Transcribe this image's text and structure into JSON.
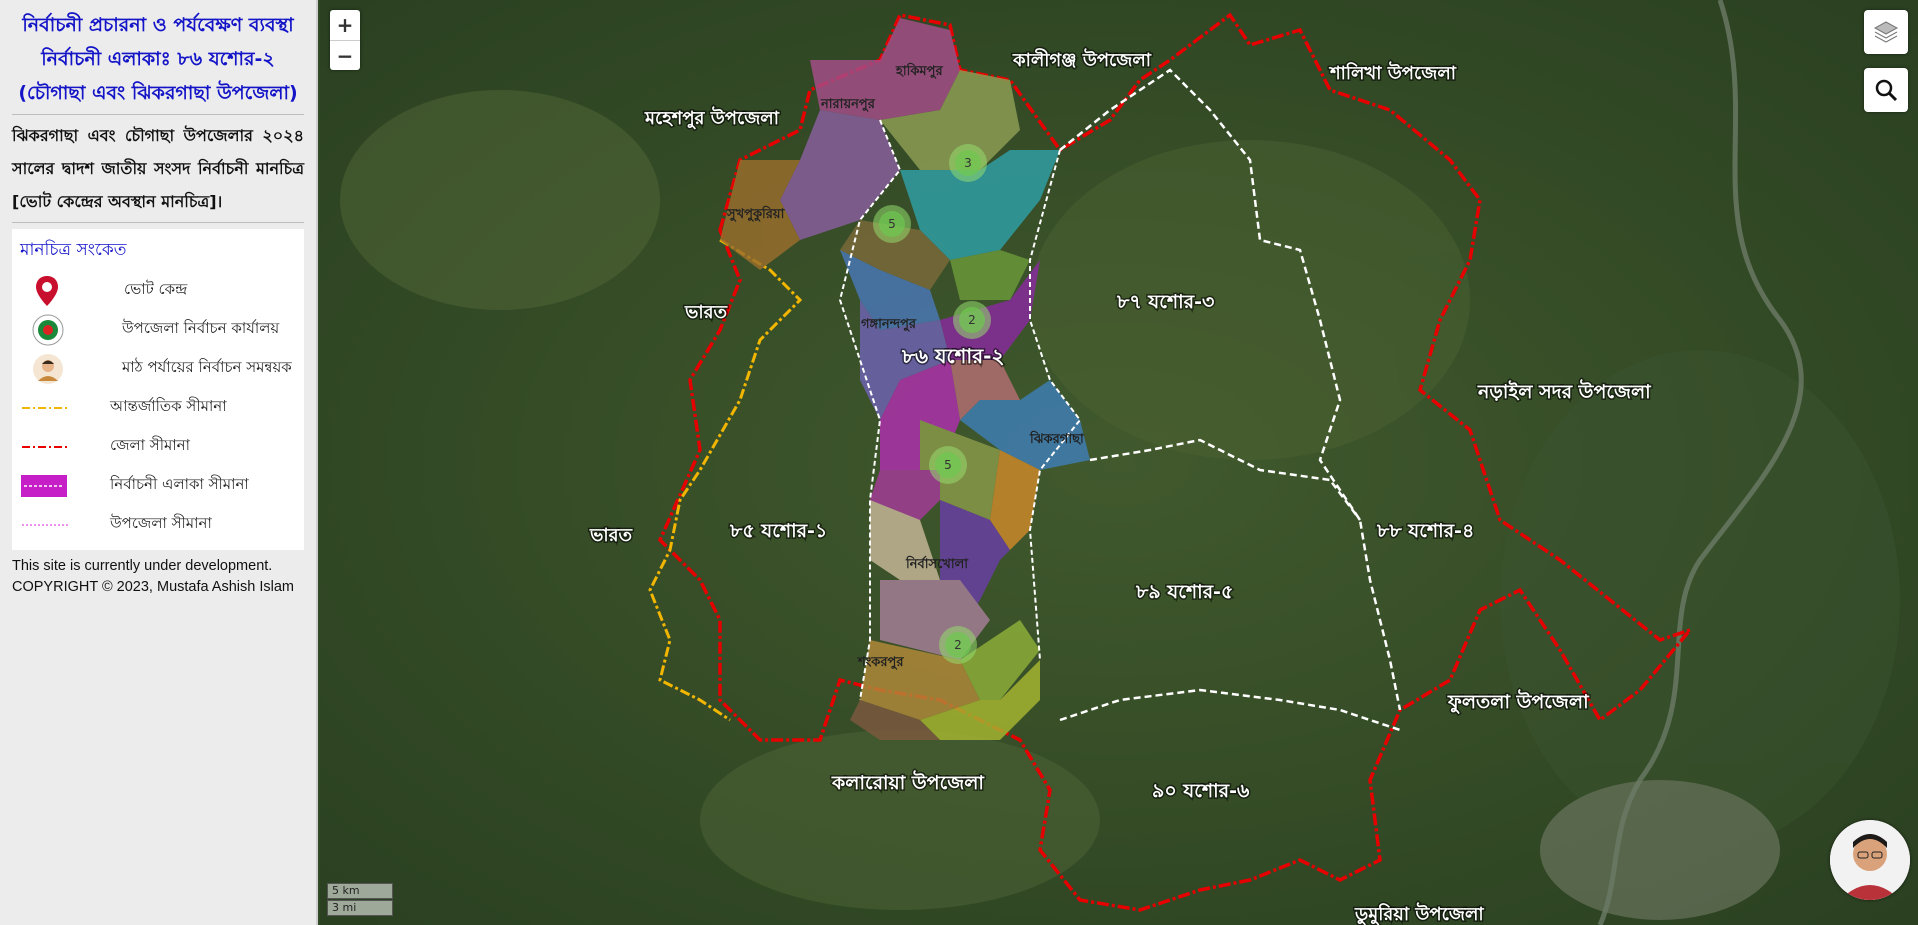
{
  "sidebar": {
    "title_line1": "নির্বাচনী প্রচারনা ও পর্যবেক্ষণ ব্যবস্থা",
    "title_line2": "নির্বাচনী এলাকাঃ ৮৬ যশোর-২",
    "title_line3": "(চৌগাছা এবং ঝিকরগাছা উপজেলা)",
    "description": "ঝিকরগাছা এবং চৌগাছা উপজেলার ২০২৪ সালের দ্বাদশ জাতীয় সংসদ নির্বাচনী মানচিত্র [ভোট কেন্দ্রের অবস্থান মানচিত্র]।",
    "legend_title": "মানচিত্র সংকেত",
    "legend": [
      {
        "icon": "map-pin-icon",
        "label": "ভোট কেন্দ্র"
      },
      {
        "icon": "election-office-logo-icon",
        "label": "উপজেলা নির্বাচন কার্যালয়"
      },
      {
        "icon": "person-icon",
        "label": "মাঠ পর্যায়ের নির্বাচন সমন্বয়ক"
      },
      {
        "icon": "international-border-line-icon",
        "label": "আন্তর্জাতিক সীমানা"
      },
      {
        "icon": "district-border-line-icon",
        "label": "জেলা সীমানা"
      },
      {
        "icon": "constituency-area-swatch-icon",
        "label": "নির্বাচনী এলাকা সীমানা"
      },
      {
        "icon": "upazila-border-line-icon",
        "label": "উপজেলা সীমানা"
      }
    ],
    "footer_line1": "This site is currently under development.",
    "footer_line2": "COPYRIGHT © 2023, Mustafa Ashish Islam"
  },
  "map": {
    "zoom_in": "+",
    "zoom_out": "−",
    "layers_icon": "layers-icon",
    "search_icon": "search-icon",
    "scale_km": "5 km",
    "scale_mi": "3 mi",
    "labels": {
      "maheshpur": "মহেশপুর উপজেলা",
      "kaliganj": "কালীগঞ্জ উপজেলা",
      "shalikha": "শালিখা উপজেলা",
      "bharat1": "ভারত",
      "bharat2": "ভারত",
      "jessore3": "৮৭ যশোর-৩",
      "jessore2": "৮৬ যশোর-২",
      "jessore1": "৮৫ যশোর-১",
      "jessore4": "৮৮ যশোর-৪",
      "jessore5": "৮৯ যশোর-৫",
      "jessore6": "৯০ যশোর-৬",
      "narail": "নড়াইল সদর উপজেলা",
      "phultala": "ফুলতলা উপজেলা",
      "kalaroa": "কলারোয়া উপজেলা",
      "dumuria": "ডুমুরিয়া উপজেলা",
      "hakimpur": "হাকিমপুর",
      "narayanpur": "নারায়নপুর",
      "sukhpukuria": "সুখপুকুরিয়া",
      "gangananda": "গঙ্গানন্দপুর",
      "jhikargacha": "ঝিকরগাছা",
      "nirbaskhola": "নির্বাসখোলা",
      "shankarpur": "শংকরপুর"
    },
    "clusters": [
      "3",
      "5",
      "2",
      "5",
      "2"
    ],
    "colors": {
      "district_border": "#e60000",
      "international_border": "#f2b600",
      "constituency_border": "#ffffff",
      "legend_swatch": "#c71fc7"
    }
  },
  "user_avatar": "avatar"
}
